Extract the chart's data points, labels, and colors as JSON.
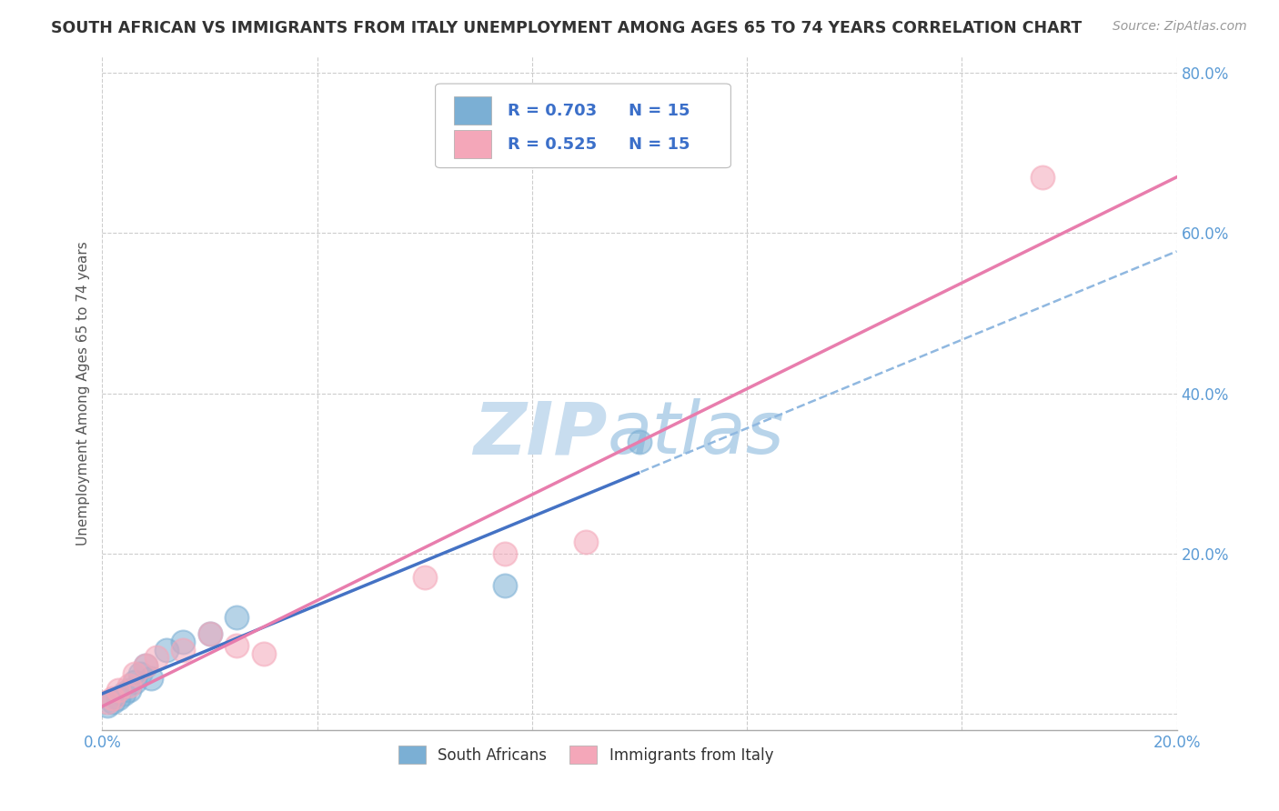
{
  "title": "SOUTH AFRICAN VS IMMIGRANTS FROM ITALY UNEMPLOYMENT AMONG AGES 65 TO 74 YEARS CORRELATION CHART",
  "source": "Source: ZipAtlas.com",
  "ylabel": "Unemployment Among Ages 65 to 74 years",
  "xlim": [
    0.0,
    0.2
  ],
  "ylim": [
    -0.02,
    0.82
  ],
  "xticks": [
    0.0,
    0.04,
    0.08,
    0.12,
    0.16,
    0.2
  ],
  "yticks": [
    0.0,
    0.2,
    0.4,
    0.6,
    0.8
  ],
  "blue_R": 0.703,
  "blue_N": 15,
  "pink_R": 0.525,
  "pink_N": 15,
  "blue_color": "#7BAFD4",
  "pink_color": "#F4A7B9",
  "blue_line_color": "#4472C4",
  "pink_line_color": "#E87DAD",
  "blue_scatter_x": [
    0.001,
    0.002,
    0.003,
    0.004,
    0.005,
    0.006,
    0.007,
    0.008,
    0.009,
    0.012,
    0.015,
    0.02,
    0.025,
    0.075,
    0.1
  ],
  "blue_scatter_y": [
    0.01,
    0.015,
    0.02,
    0.025,
    0.03,
    0.04,
    0.05,
    0.06,
    0.045,
    0.08,
    0.09,
    0.1,
    0.12,
    0.16,
    0.34
  ],
  "pink_scatter_x": [
    0.001,
    0.002,
    0.003,
    0.005,
    0.006,
    0.008,
    0.01,
    0.015,
    0.02,
    0.025,
    0.03,
    0.06,
    0.075,
    0.09,
    0.175
  ],
  "pink_scatter_y": [
    0.015,
    0.02,
    0.03,
    0.035,
    0.05,
    0.06,
    0.07,
    0.08,
    0.1,
    0.085,
    0.075,
    0.17,
    0.2,
    0.215,
    0.67
  ],
  "watermark_zip": "ZIP",
  "watermark_atlas": "atlas",
  "watermark_color": "#C8DDEF",
  "background_color": "#FFFFFF",
  "grid_color": "#CCCCCC",
  "title_color": "#333333",
  "source_color": "#999999",
  "tick_color": "#5B9BD5",
  "ylabel_color": "#555555"
}
